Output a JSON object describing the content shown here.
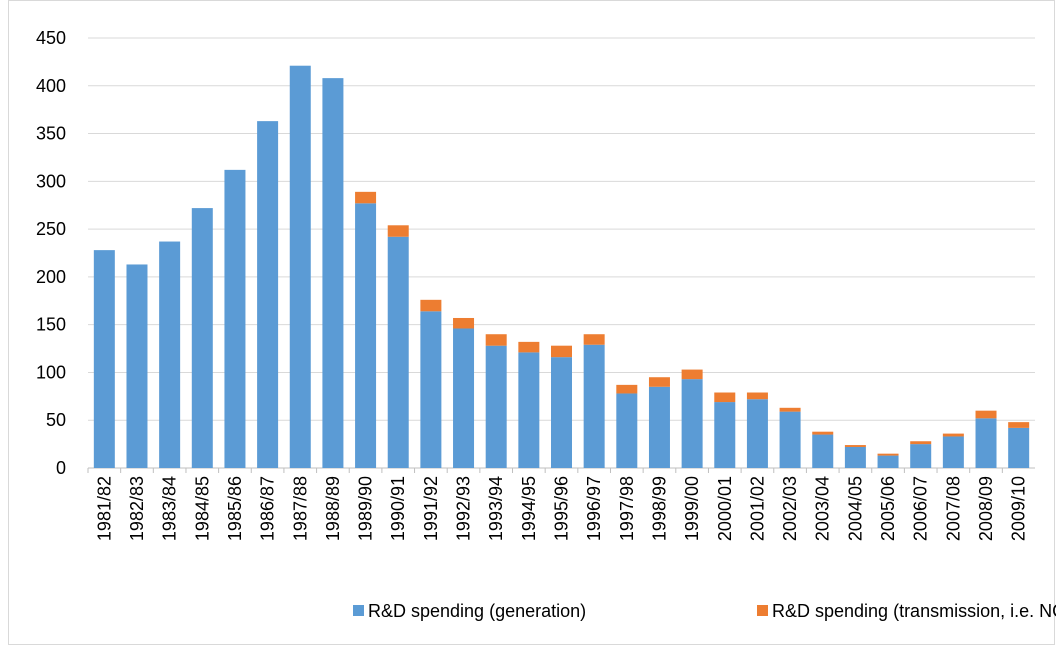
{
  "chart_data": {
    "type": "stacked_bar",
    "categories": [
      "1981/82",
      "1982/83",
      "1983/84",
      "1984/85",
      "1985/86",
      "1986/87",
      "1987/88",
      "1988/89",
      "1989/90",
      "1990/91",
      "1991/92",
      "1992/93",
      "1993/94",
      "1994/95",
      "1995/96",
      "1996/97",
      "1997/98",
      "1998/99",
      "1999/00",
      "2000/01",
      "2001/02",
      "2002/03",
      "2003/04",
      "2004/05",
      "2005/06",
      "2006/07",
      "2007/08",
      "2008/09",
      "2009/10"
    ],
    "series": [
      {
        "name": "R&D spending (generation)",
        "color": "#5b9bd5",
        "values": [
          228,
          213,
          237,
          272,
          312,
          363,
          421,
          408,
          277,
          242,
          164,
          146,
          128,
          121,
          116,
          129,
          78,
          85,
          93,
          69,
          72,
          59,
          35,
          22,
          13,
          25,
          33,
          52,
          42
        ]
      },
      {
        "name": "R&D spending (transmission, i.e. NGC)",
        "color": "#ed7d31",
        "values": [
          0,
          0,
          0,
          0,
          0,
          0,
          0,
          0,
          12,
          12,
          12,
          11,
          12,
          11,
          12,
          11,
          9,
          10,
          10,
          10,
          7,
          4,
          3,
          2,
          2,
          3,
          3,
          8,
          6
        ]
      }
    ],
    "ylim": [
      0,
      450
    ],
    "yticks": [
      0,
      50,
      100,
      150,
      200,
      250,
      300,
      350,
      400,
      450
    ],
    "grid": true,
    "legend": "bottom"
  }
}
